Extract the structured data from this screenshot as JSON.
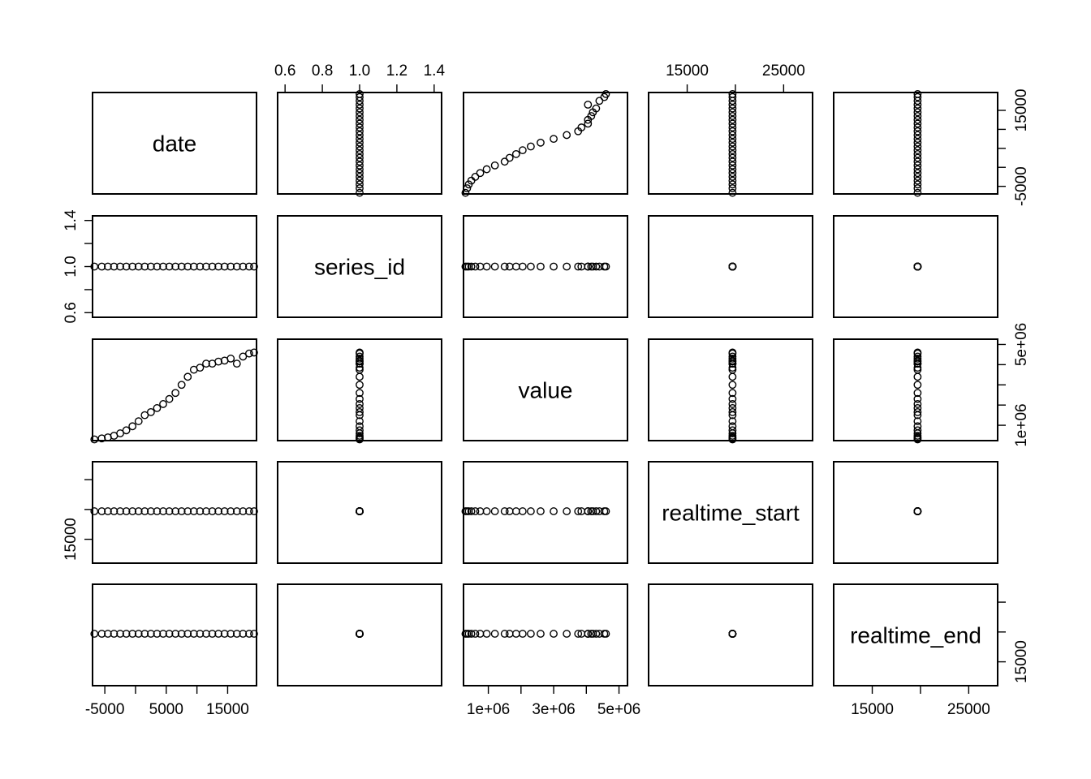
{
  "chart_data": {
    "type": "scatter",
    "variables": [
      "date",
      "series_id",
      "value",
      "realtime_start",
      "realtime_end"
    ],
    "ranges": {
      "date": [
        -7000,
        19700
      ],
      "series_id": [
        0.56,
        1.44
      ],
      "value": [
        240000,
        5260000
      ],
      "realtime_start": [
        11000,
        28000
      ],
      "realtime_end": [
        11000,
        28000
      ]
    },
    "axis_ticks": {
      "top": {
        "series_id": [
          "0.6",
          "0.8",
          "1.0",
          "1.2",
          "1.4"
        ],
        "realtime_start": [
          "15000",
          "25000"
        ]
      },
      "bottom": {
        "date": [
          "-5000",
          "5000",
          "15000"
        ],
        "value": [
          "1e+06",
          "3e+06",
          "5e+06"
        ],
        "realtime_end": [
          "15000",
          "25000"
        ]
      },
      "left": {
        "series_id": [
          "0.6",
          "1.0",
          "1.4"
        ],
        "realtime_start": [
          "15000"
        ]
      },
      "right": {
        "date": [
          "-5000",
          "15000"
        ],
        "value": [
          "1e+06",
          "5e+06"
        ],
        "realtime_end": [
          "15000"
        ]
      }
    },
    "constants": {
      "series_id": 1.0,
      "realtime_start": 19700,
      "realtime_end": 19700
    },
    "series": [
      {
        "x_variable": "date",
        "y_variable": "value",
        "x": [
          -6700,
          -5500,
          -4500,
          -3500,
          -2500,
          -1500,
          -500,
          500,
          1500,
          2500,
          3500,
          4500,
          5500,
          6500,
          7500,
          8500,
          9500,
          10500,
          11500,
          12500,
          13500,
          14500,
          15500,
          16500,
          17500,
          18500,
          19300
        ],
        "y": [
          300000,
          350000,
          400000,
          480000,
          600000,
          750000,
          950000,
          1200000,
          1500000,
          1650000,
          1850000,
          2050000,
          2300000,
          2600000,
          3000000,
          3400000,
          3750000,
          3850000,
          4050000,
          4050000,
          4150000,
          4200000,
          4300000,
          4050000,
          4400000,
          4550000,
          4600000
        ]
      }
    ]
  }
}
